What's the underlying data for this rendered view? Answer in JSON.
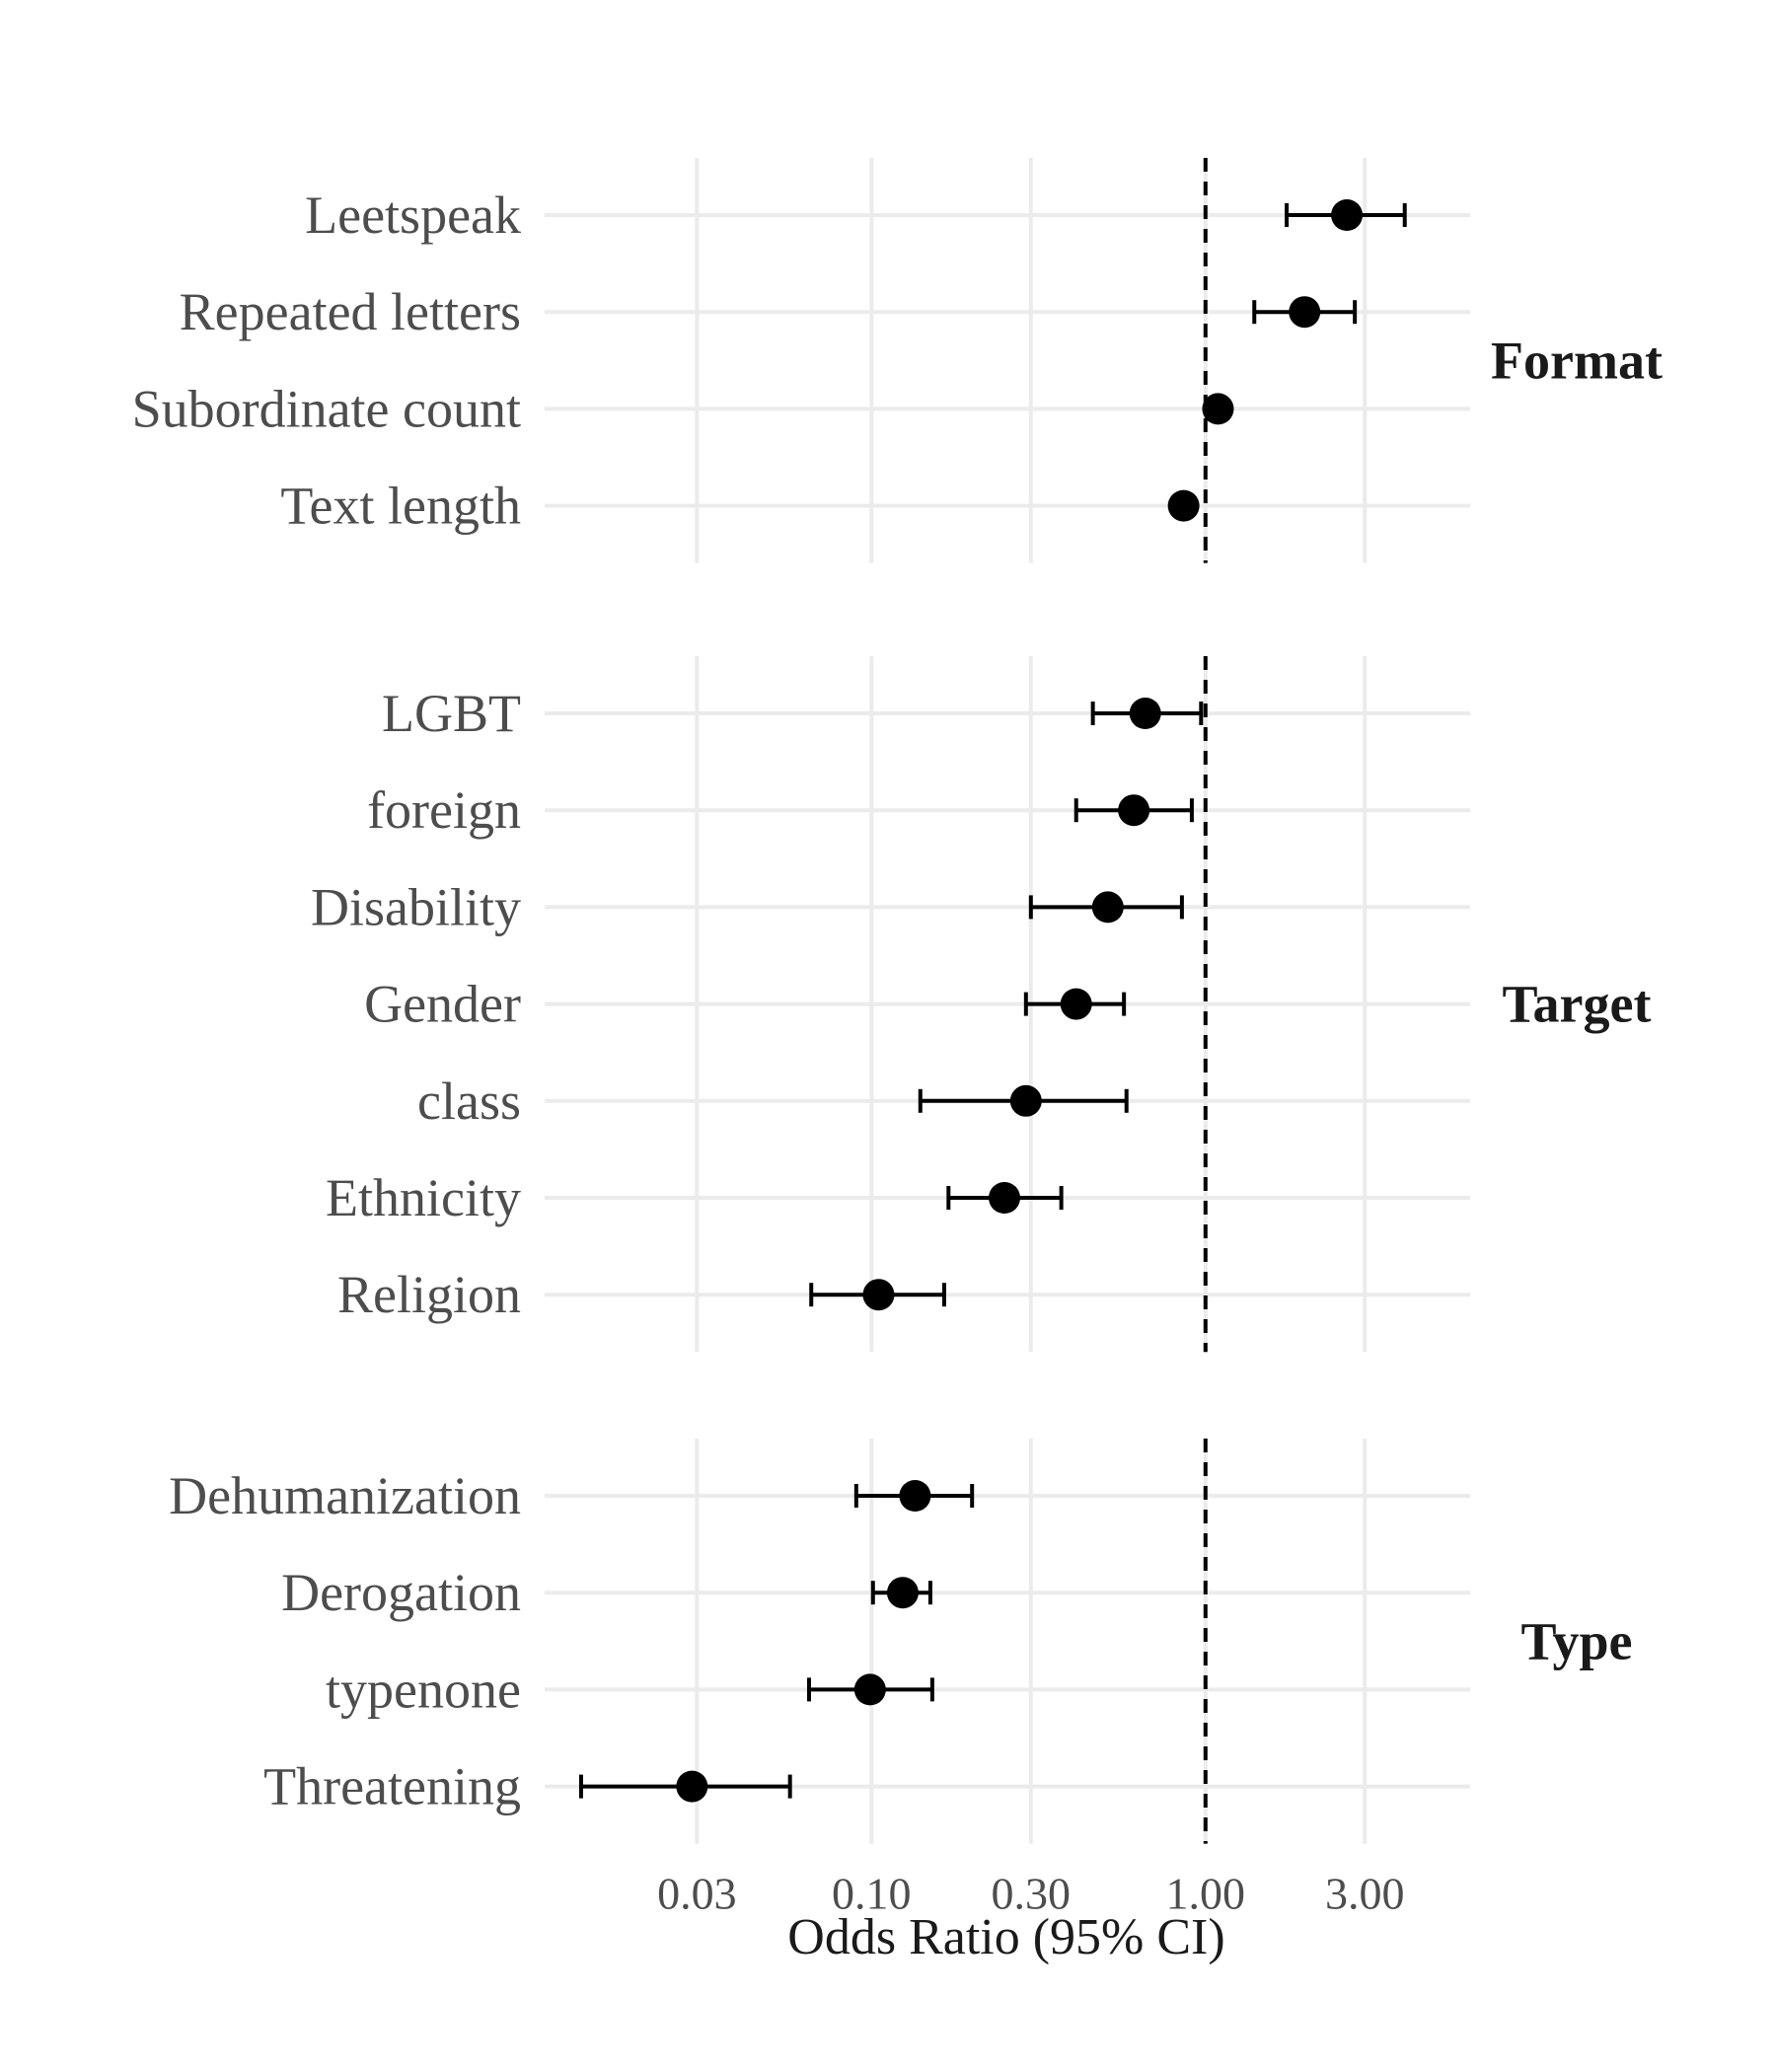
{
  "chart_data": {
    "type": "forest",
    "title": "",
    "xlabel": "Odds Ratio (95% CI)",
    "ylabel": "",
    "x_scale": "log10",
    "xlim": [
      0.0105,
      6.2
    ],
    "x_ticks": [
      0.03,
      0.1,
      0.3,
      1.0,
      3.0
    ],
    "x_tick_labels": [
      "0.03",
      "0.10",
      "0.30",
      "1.00",
      "3.00"
    ],
    "reference_line": 1.0,
    "grid": true,
    "colors": {
      "point": "#000000",
      "grid": "#ebebeb",
      "text": "#4d4d4d"
    },
    "facets": [
      {
        "label": "Format",
        "items": [
          {
            "label": "Leetspeak",
            "or": 2.65,
            "lo": 1.75,
            "hi": 3.95
          },
          {
            "label": "Repeated letters",
            "or": 1.98,
            "lo": 1.4,
            "hi": 2.8
          },
          {
            "label": "Subordinate count",
            "or": 1.09,
            "lo": 1.03,
            "hi": 1.15
          },
          {
            "label": "Text length",
            "or": 0.86,
            "lo": 0.82,
            "hi": 0.9
          }
        ]
      },
      {
        "label": "Target",
        "items": [
          {
            "label": "LGBT",
            "or": 0.66,
            "lo": 0.46,
            "hi": 0.97
          },
          {
            "label": "foreign",
            "or": 0.61,
            "lo": 0.41,
            "hi": 0.91
          },
          {
            "label": "Disability",
            "or": 0.51,
            "lo": 0.3,
            "hi": 0.85
          },
          {
            "label": "Gender",
            "or": 0.41,
            "lo": 0.29,
            "hi": 0.57
          },
          {
            "label": "class",
            "or": 0.29,
            "lo": 0.14,
            "hi": 0.58
          },
          {
            "label": "Ethnicity",
            "or": 0.25,
            "lo": 0.17,
            "hi": 0.37
          },
          {
            "label": "Religion",
            "or": 0.105,
            "lo": 0.066,
            "hi": 0.165
          }
        ]
      },
      {
        "label": "Type",
        "items": [
          {
            "label": "Dehumanization",
            "or": 0.135,
            "lo": 0.09,
            "hi": 0.2
          },
          {
            "label": "Derogation",
            "or": 0.124,
            "lo": 0.101,
            "hi": 0.15
          },
          {
            "label": "typenone",
            "or": 0.099,
            "lo": 0.065,
            "hi": 0.152
          },
          {
            "label": "Threatening",
            "or": 0.029,
            "lo": 0.0135,
            "hi": 0.057
          }
        ]
      }
    ]
  }
}
